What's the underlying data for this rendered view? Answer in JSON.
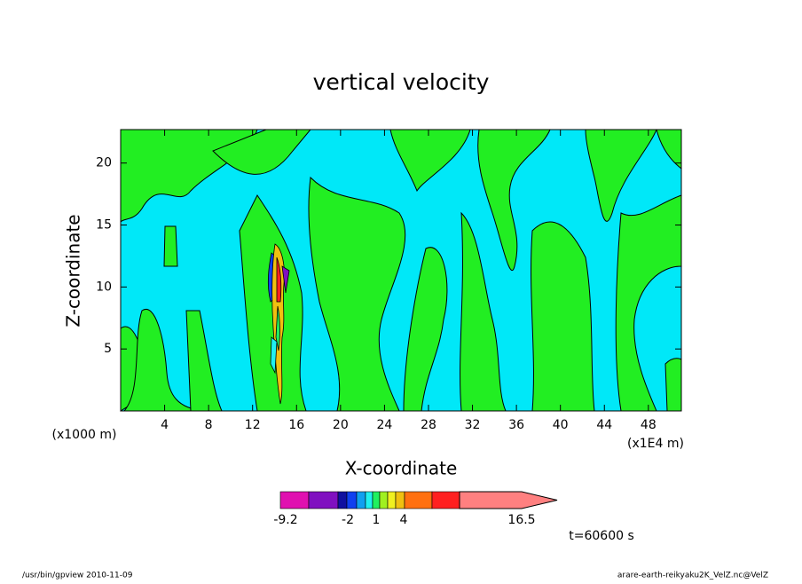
{
  "chart_data": {
    "type": "contour",
    "title": "vertical velocity",
    "x_label": "X-coordinate",
    "y_label": "Z-coordinate",
    "x_unit_label": "(x1E4 m)",
    "y_unit_label": "(x1000 m)",
    "xlim": [
      0,
      51
    ],
    "xticks": [
      4,
      8,
      12,
      16,
      20,
      24,
      28,
      32,
      36,
      40,
      44,
      48
    ],
    "ylim": [
      0,
      22.7
    ],
    "yticks": [
      5,
      10,
      15,
      20
    ],
    "colorbar": {
      "colors": [
        "#e010b0",
        "#8010c0",
        "#1010a0",
        "#1040f0",
        "#10a0f0",
        "#20f0f0",
        "#20f060",
        "#a0f020",
        "#f0f020",
        "#f0c010",
        "#ff7010",
        "#ff2020",
        "#ff8080"
      ],
      "ticks": [
        -9.2,
        -2,
        1,
        4,
        16.5
      ]
    },
    "time_label": "t=60600 s",
    "footer_left": "/usr/bin/gpview   2010-11-09",
    "footer_right": "arare-earth-reikyaku2K_VelZ.nc@VelZ"
  }
}
